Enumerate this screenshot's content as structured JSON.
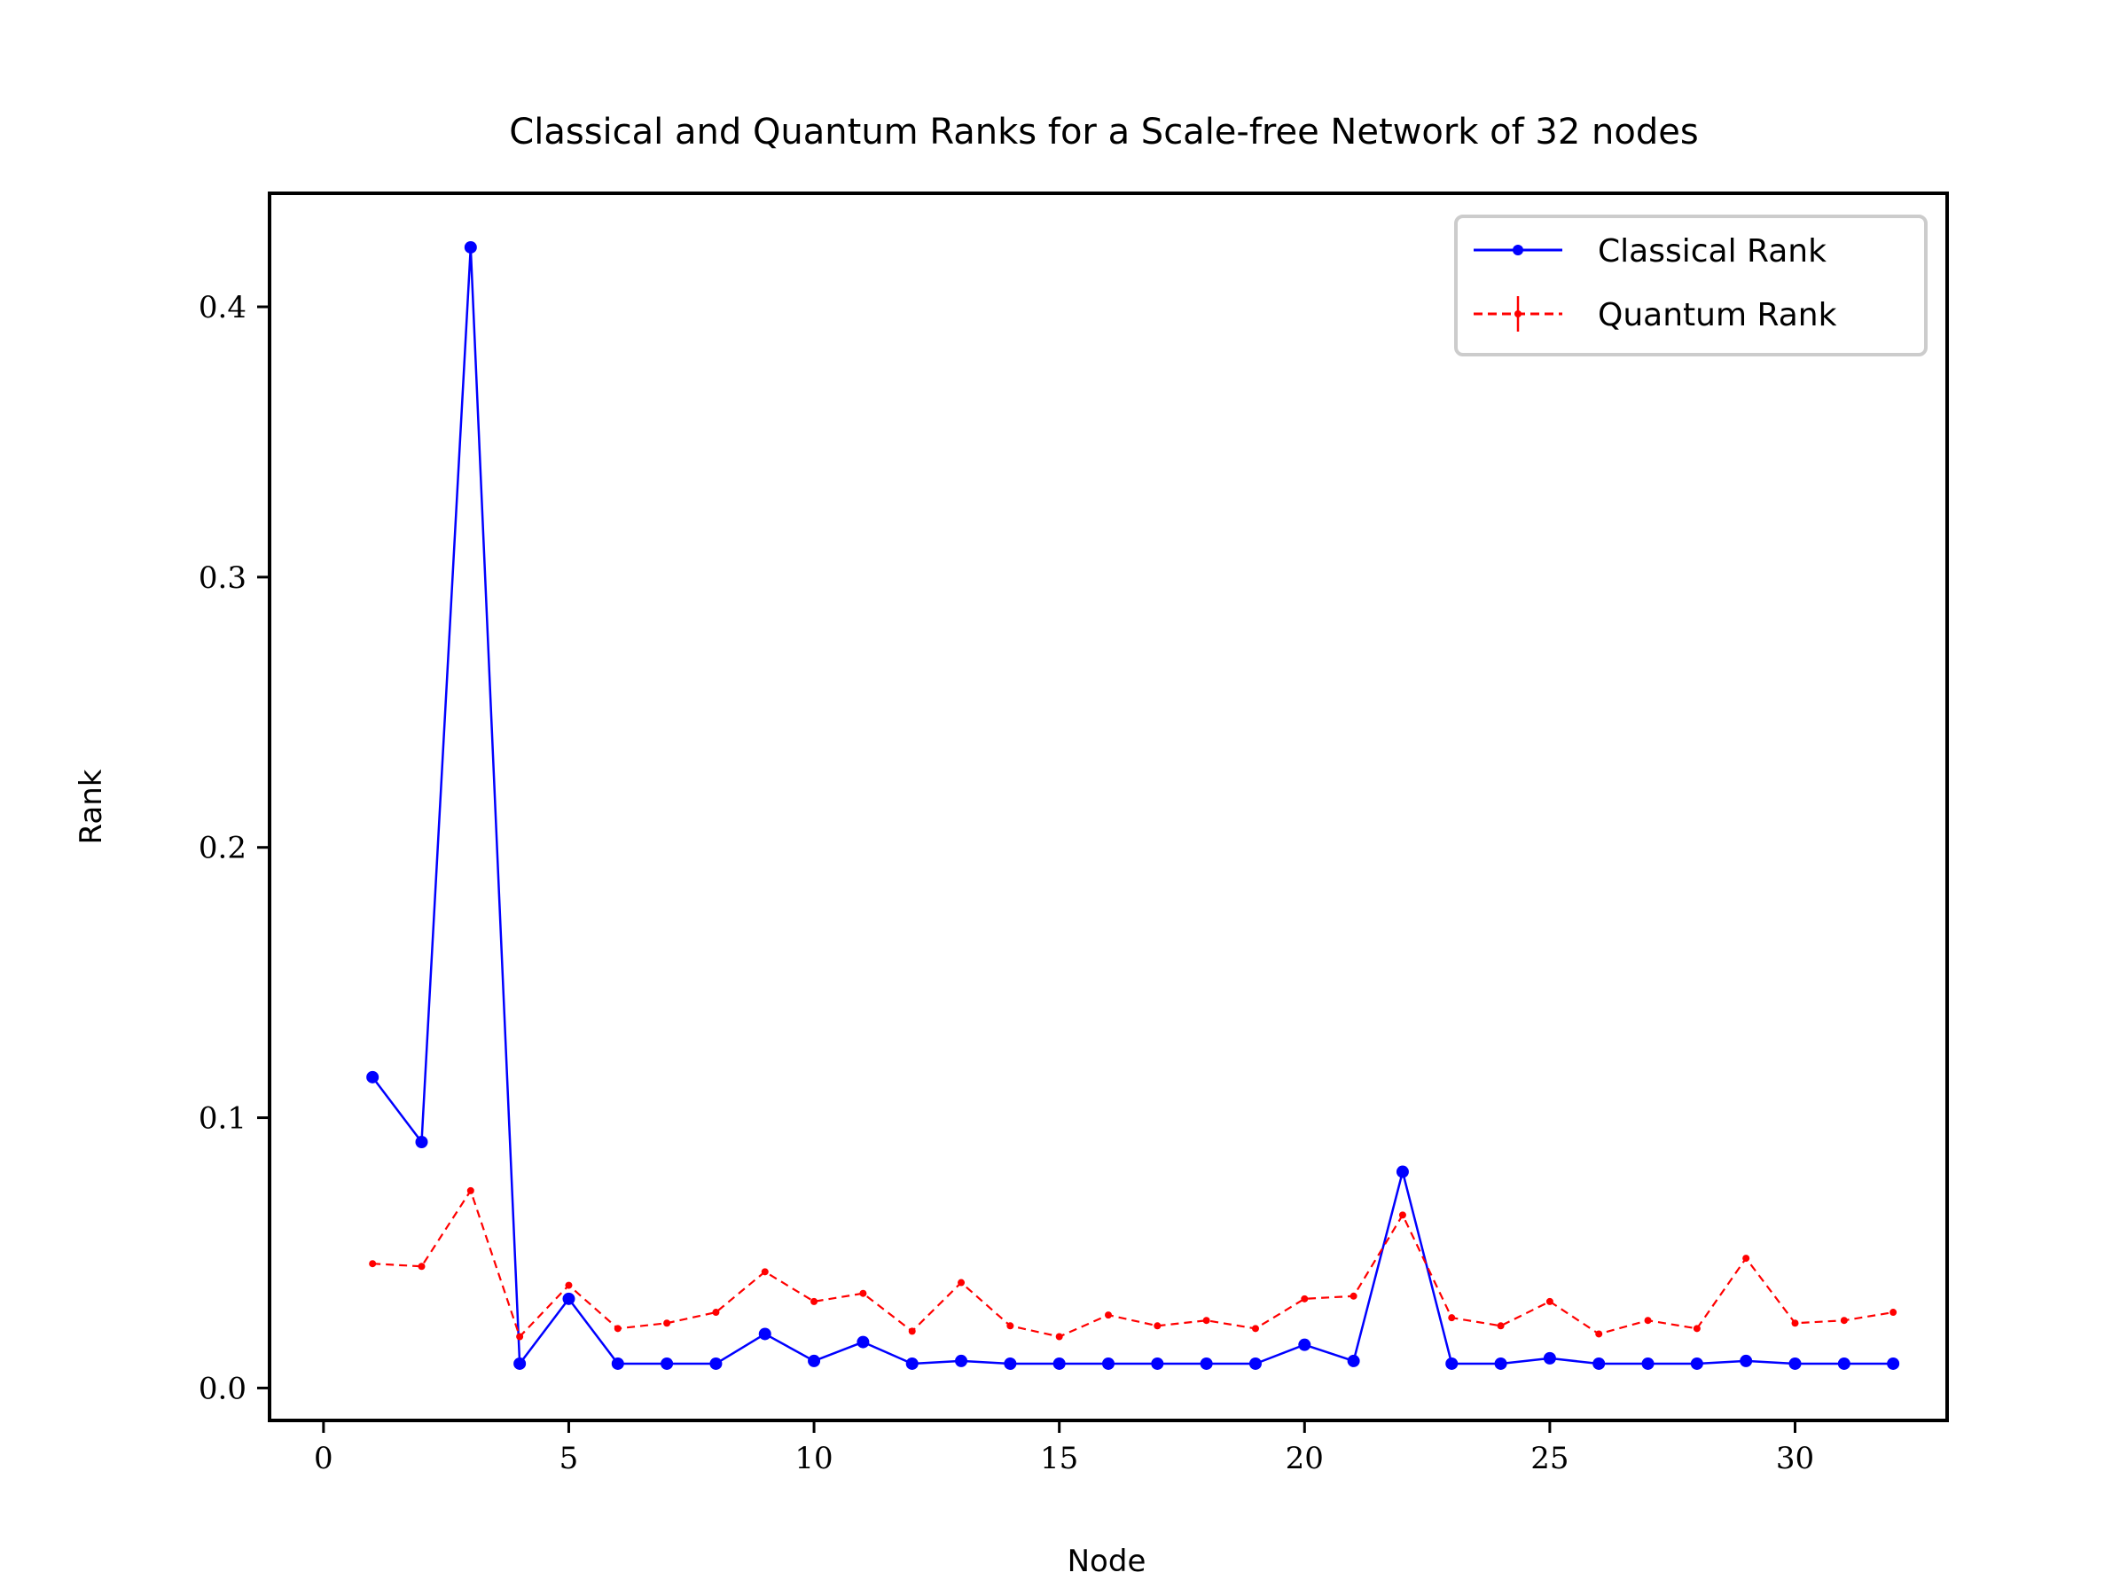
{
  "chart_data": {
    "type": "line",
    "title": "Classical and Quantum Ranks for a Scale-free Network of 32 nodes",
    "xlabel": "Node",
    "ylabel": "Rank",
    "xlim": [
      -1.1,
      33.1
    ],
    "ylim": [
      -0.012,
      0.442
    ],
    "xticks": [
      0,
      5,
      10,
      15,
      20,
      25,
      30
    ],
    "yticks": [
      0.0,
      0.1,
      0.2,
      0.3,
      0.4
    ],
    "xtick_labels": [
      "0",
      "5",
      "10",
      "15",
      "20",
      "25",
      "30"
    ],
    "ytick_labels": [
      "0.0",
      "0.1",
      "0.2",
      "0.3",
      "0.4"
    ],
    "grid": false,
    "legend_position": "top-right",
    "x": [
      1,
      2,
      3,
      4,
      5,
      6,
      7,
      8,
      9,
      10,
      11,
      12,
      13,
      14,
      15,
      16,
      17,
      18,
      19,
      20,
      21,
      22,
      23,
      24,
      25,
      26,
      27,
      28,
      29,
      30,
      31,
      32
    ],
    "series": [
      {
        "name": "Classical Rank",
        "color": "#0000ff",
        "line_style": "solid",
        "marker": "dot",
        "values": [
          0.115,
          0.091,
          0.422,
          0.009,
          0.033,
          0.009,
          0.009,
          0.009,
          0.02,
          0.01,
          0.017,
          0.009,
          0.01,
          0.009,
          0.009,
          0.009,
          0.009,
          0.009,
          0.009,
          0.016,
          0.01,
          0.08,
          0.009,
          0.009,
          0.011,
          0.009,
          0.009,
          0.009,
          0.01,
          0.009,
          0.009,
          0.009
        ]
      },
      {
        "name": "Quantum Rank",
        "color": "#ff0000",
        "line_style": "dashed",
        "marker": "small-dot-errorbar",
        "values": [
          0.046,
          0.045,
          0.073,
          0.019,
          0.038,
          0.022,
          0.024,
          0.028,
          0.043,
          0.032,
          0.035,
          0.021,
          0.039,
          0.023,
          0.019,
          0.027,
          0.023,
          0.025,
          0.022,
          0.033,
          0.034,
          0.064,
          0.026,
          0.023,
          0.032,
          0.02,
          0.025,
          0.022,
          0.048,
          0.024,
          0.025,
          0.028
        ]
      }
    ]
  }
}
